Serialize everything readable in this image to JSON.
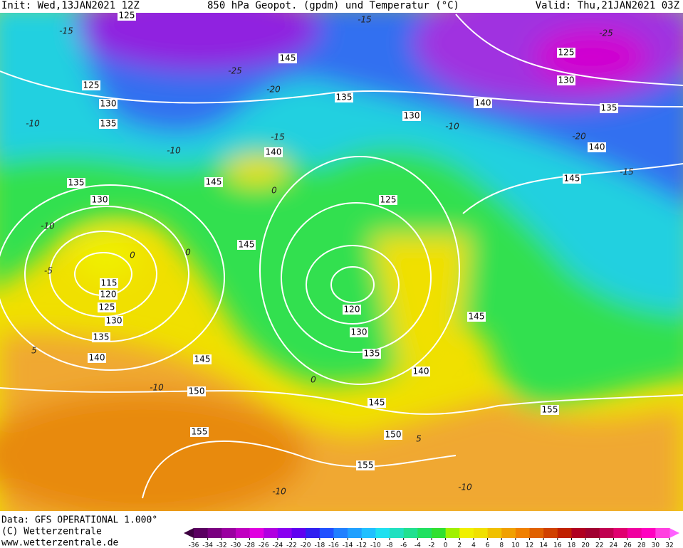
{
  "header": {
    "init": "Init: Wed,13JAN2021 12Z",
    "title": "850 hPa Geopot. (gpdm) und Temperatur (°C)",
    "valid": "Valid: Thu,21JAN2021 03Z"
  },
  "geopotential_labels": [
    125,
    145,
    125,
    130,
    135,
    135,
    130,
    140,
    125,
    130,
    135,
    140,
    145,
    140,
    145,
    135,
    130,
    145,
    125,
    115,
    120,
    125,
    130,
    135,
    140,
    120,
    130,
    135,
    140,
    145,
    145,
    150,
    145,
    150,
    155,
    155,
    155
  ],
  "temperature_labels": [
    -15,
    -15,
    -25,
    -20,
    -10,
    -10,
    -15,
    -15,
    -20,
    -10,
    0,
    -10,
    -5,
    0,
    0,
    5,
    -10,
    0,
    5,
    -10,
    -10,
    -25
  ],
  "footer": {
    "source": "Data: GFS OPERATIONAL 1.000°",
    "copyright": "(C) Wetterzentrale",
    "url": "www.wetterzentrale.de"
  },
  "colorbar": {
    "ticks": [
      -36,
      -34,
      -32,
      -30,
      -28,
      -26,
      -24,
      -22,
      -20,
      -18,
      -16,
      -14,
      -12,
      -10,
      -8,
      -6,
      -4,
      -2,
      0,
      2,
      4,
      6,
      8,
      10,
      12,
      14,
      16,
      18,
      20,
      22,
      24,
      26,
      28,
      30,
      32
    ],
    "colors": [
      "#5a0060",
      "#7a0080",
      "#9a00a0",
      "#c000c0",
      "#e000e0",
      "#b000e0",
      "#8a00f0",
      "#6000f0",
      "#3020f0",
      "#2050ff",
      "#2080ff",
      "#20a0ff",
      "#20c0ff",
      "#20e0f0",
      "#20e0c0",
      "#20e090",
      "#20e060",
      "#30e030",
      "#a0f000",
      "#f0f000",
      "#f0e000",
      "#f0c000",
      "#f0a000",
      "#f08000",
      "#e06000",
      "#d04000",
      "#c02000",
      "#b00020",
      "#a00030",
      "#c00050",
      "#e00070",
      "#f000a0",
      "#ff00c0",
      "#ff40e0"
    ],
    "under_color": "#3d0040",
    "over_color": "#ff60ff"
  }
}
